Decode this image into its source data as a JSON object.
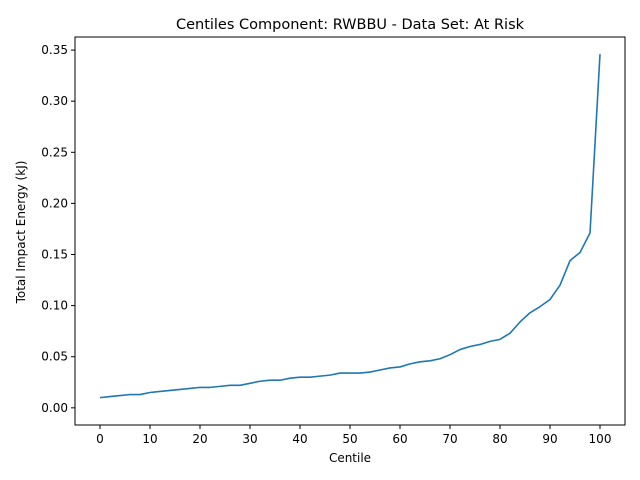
{
  "chart_data": {
    "type": "line",
    "title": "Centiles Component: RWBBU - Data Set: At Risk",
    "xlabel": "Centile",
    "ylabel": "Total Impact Energy (kJ)",
    "xlim": [
      -5,
      105
    ],
    "ylim": [
      -0.0168,
      0.3628
    ],
    "xticks": [
      "0",
      "10",
      "20",
      "30",
      "40",
      "50",
      "60",
      "70",
      "80",
      "90",
      "100"
    ],
    "yticks": [
      "0.00",
      "0.05",
      "0.10",
      "0.15",
      "0.20",
      "0.25",
      "0.30",
      "0.35"
    ],
    "grid": false,
    "line_color": "#1f77b4",
    "series": [
      {
        "x": [
          0,
          2,
          4,
          6,
          8,
          10,
          12,
          14,
          16,
          18,
          20,
          22,
          24,
          26,
          28,
          30,
          32,
          34,
          36,
          38,
          40,
          42,
          44,
          46,
          48,
          50,
          52,
          54,
          56,
          58,
          60,
          62,
          64,
          66,
          68,
          70,
          72,
          74,
          76,
          78,
          80,
          82,
          84,
          86,
          88,
          90,
          92,
          94,
          96,
          98,
          100
        ],
        "values": [
          0.01,
          0.011,
          0.012,
          0.013,
          0.013,
          0.015,
          0.016,
          0.017,
          0.018,
          0.019,
          0.02,
          0.02,
          0.021,
          0.022,
          0.022,
          0.024,
          0.026,
          0.027,
          0.027,
          0.029,
          0.03,
          0.03,
          0.031,
          0.032,
          0.034,
          0.034,
          0.034,
          0.035,
          0.037,
          0.039,
          0.04,
          0.043,
          0.045,
          0.046,
          0.048,
          0.052,
          0.057,
          0.06,
          0.062,
          0.065,
          0.067,
          0.073,
          0.084,
          0.093,
          0.099,
          0.106,
          0.12,
          0.144,
          0.152,
          0.171,
          0.346
        ]
      }
    ]
  }
}
